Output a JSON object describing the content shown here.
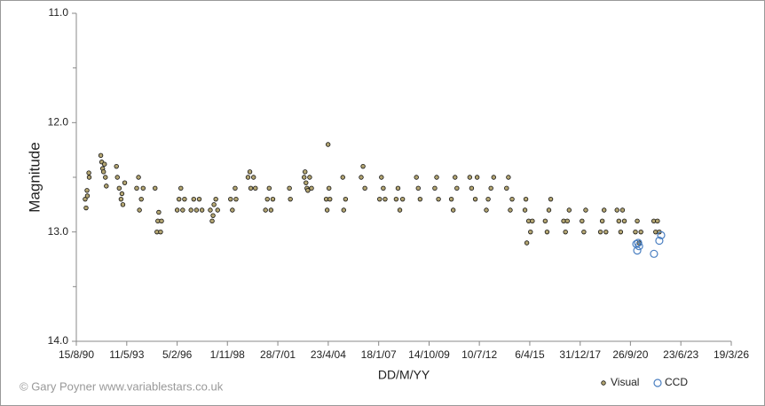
{
  "chart_data": {
    "type": "scatter",
    "y_label": "Magnitude",
    "x_label": "DD/M/YY",
    "credit": "© Gary Poyner  www.variablestars.co.uk",
    "xlim": [
      1990.62,
      2026.21
    ],
    "ylim": [
      11,
      14
    ],
    "y_inverted": true,
    "xticks": [
      {
        "value": 1990.62,
        "label": "15/8/90"
      },
      {
        "value": 1993.36,
        "label": "11/5/93"
      },
      {
        "value": 1996.1,
        "label": "5/2/96"
      },
      {
        "value": 1998.83,
        "label": "1/11/98"
      },
      {
        "value": 2001.57,
        "label": "28/7/01"
      },
      {
        "value": 2004.31,
        "label": "23/4/04"
      },
      {
        "value": 2007.05,
        "label": "18/1/07"
      },
      {
        "value": 2009.79,
        "label": "14/10/09"
      },
      {
        "value": 2012.52,
        "label": "10/7/12"
      },
      {
        "value": 2015.26,
        "label": "6/4/15"
      },
      {
        "value": 2018.0,
        "label": "31/12/17"
      },
      {
        "value": 2020.73,
        "label": "26/9/20"
      },
      {
        "value": 2023.47,
        "label": "23/6/23"
      },
      {
        "value": 2026.21,
        "label": "19/3/26"
      }
    ],
    "yticks": [
      {
        "value": 11,
        "label": "11.0"
      },
      {
        "value": 12,
        "label": "12.0"
      },
      {
        "value": 13,
        "label": "13.0"
      },
      {
        "value": 14,
        "label": "14.0"
      }
    ],
    "yminorticks": [
      11.5,
      12.5,
      13.5
    ],
    "grid": false,
    "legend": "bottom-right",
    "series": [
      {
        "name": "Visual",
        "color": "#b3a572",
        "marker": "filled",
        "x": [
          1991.1,
          1991.15,
          1991.2,
          1991.22,
          1991.3,
          1991.32,
          1991.95,
          1992.0,
          1992.05,
          1992.1,
          1992.15,
          1992.2,
          1992.25,
          1992.8,
          1992.85,
          1992.95,
          1993.05,
          1993.1,
          1993.15,
          1993.25,
          1993.9,
          1994.0,
          1994.05,
          1994.15,
          1994.25,
          1994.9,
          1995.0,
          1995.05,
          1995.1,
          1995.2,
          1995.25,
          1996.1,
          1996.2,
          1996.3,
          1996.4,
          1996.5,
          1996.85,
          1997.0,
          1997.15,
          1997.3,
          1997.45,
          1997.9,
          1998.0,
          1998.05,
          1998.1,
          1998.2,
          1998.3,
          1999.0,
          1999.1,
          1999.25,
          1999.3,
          1999.95,
          2000.05,
          2000.1,
          2000.25,
          2000.35,
          2000.9,
          2001.0,
          2001.1,
          2001.2,
          2001.3,
          2002.2,
          2002.25,
          2003.0,
          2003.05,
          2003.1,
          2003.15,
          2003.2,
          2003.3,
          2003.4,
          2004.2,
          2004.25,
          2004.3,
          2004.35,
          2004.4,
          2005.1,
          2005.15,
          2005.25,
          2006.1,
          2006.2,
          2006.3,
          2007.1,
          2007.2,
          2007.3,
          2007.4,
          2008.0,
          2008.1,
          2008.2,
          2008.35,
          2009.1,
          2009.2,
          2009.3,
          2010.1,
          2010.2,
          2010.3,
          2011.0,
          2011.1,
          2011.2,
          2011.3,
          2012.0,
          2012.1,
          2012.3,
          2012.4,
          2012.9,
          2013.0,
          2013.15,
          2013.3,
          2014.0,
          2014.1,
          2014.2,
          2014.3,
          2015.0,
          2015.05,
          2015.1,
          2015.2,
          2015.3,
          2015.4,
          2016.1,
          2016.2,
          2016.3,
          2016.4,
          2017.1,
          2017.2,
          2017.3,
          2017.4,
          2018.1,
          2018.2,
          2018.3,
          2019.1,
          2019.2,
          2019.3,
          2019.4,
          2020.0,
          2020.1,
          2020.2,
          2020.3,
          2020.4,
          2021.0,
          2021.1,
          2021.2,
          2021.3,
          2022.0,
          2022.1,
          2022.2,
          2022.3
        ],
        "values": [
          12.7,
          12.78,
          12.62,
          12.67,
          12.46,
          12.5,
          12.3,
          12.36,
          12.42,
          12.45,
          12.38,
          12.5,
          12.58,
          12.4,
          12.5,
          12.6,
          12.7,
          12.65,
          12.75,
          12.55,
          12.6,
          12.5,
          12.8,
          12.7,
          12.6,
          12.6,
          13.0,
          12.9,
          12.82,
          13.0,
          12.9,
          12.8,
          12.7,
          12.6,
          12.8,
          12.7,
          12.8,
          12.7,
          12.8,
          12.7,
          12.8,
          12.8,
          12.9,
          12.85,
          12.75,
          12.7,
          12.8,
          12.7,
          12.8,
          12.6,
          12.7,
          12.5,
          12.45,
          12.6,
          12.5,
          12.6,
          12.8,
          12.7,
          12.6,
          12.8,
          12.7,
          12.6,
          12.7,
          12.5,
          12.45,
          12.55,
          12.6,
          12.62,
          12.5,
          12.6,
          12.7,
          12.8,
          12.2,
          12.6,
          12.7,
          12.5,
          12.8,
          12.7,
          12.5,
          12.4,
          12.6,
          12.7,
          12.5,
          12.6,
          12.7,
          12.7,
          12.6,
          12.8,
          12.7,
          12.5,
          12.6,
          12.7,
          12.6,
          12.5,
          12.7,
          12.7,
          12.8,
          12.5,
          12.6,
          12.5,
          12.6,
          12.7,
          12.5,
          12.8,
          12.7,
          12.6,
          12.5,
          12.6,
          12.5,
          12.8,
          12.7,
          12.8,
          12.7,
          13.1,
          12.9,
          13.0,
          12.9,
          12.9,
          13.0,
          12.8,
          12.7,
          12.9,
          13.0,
          12.9,
          12.8,
          12.9,
          13.0,
          12.8,
          13.0,
          12.9,
          12.8,
          13.0,
          12.8,
          12.9,
          13.0,
          12.8,
          12.9,
          13.0,
          12.9,
          13.1,
          13.0,
          12.9,
          13.0,
          12.9,
          13.0
        ]
      },
      {
        "name": "CCD",
        "color": "#4a7fc1",
        "marker": "open",
        "x": [
          2021.05,
          2021.1,
          2021.15,
          2021.2,
          2022.01,
          2022.3,
          2022.4
        ],
        "values": [
          13.11,
          13.17,
          13.1,
          13.13,
          13.2,
          13.08,
          13.03
        ]
      }
    ]
  }
}
